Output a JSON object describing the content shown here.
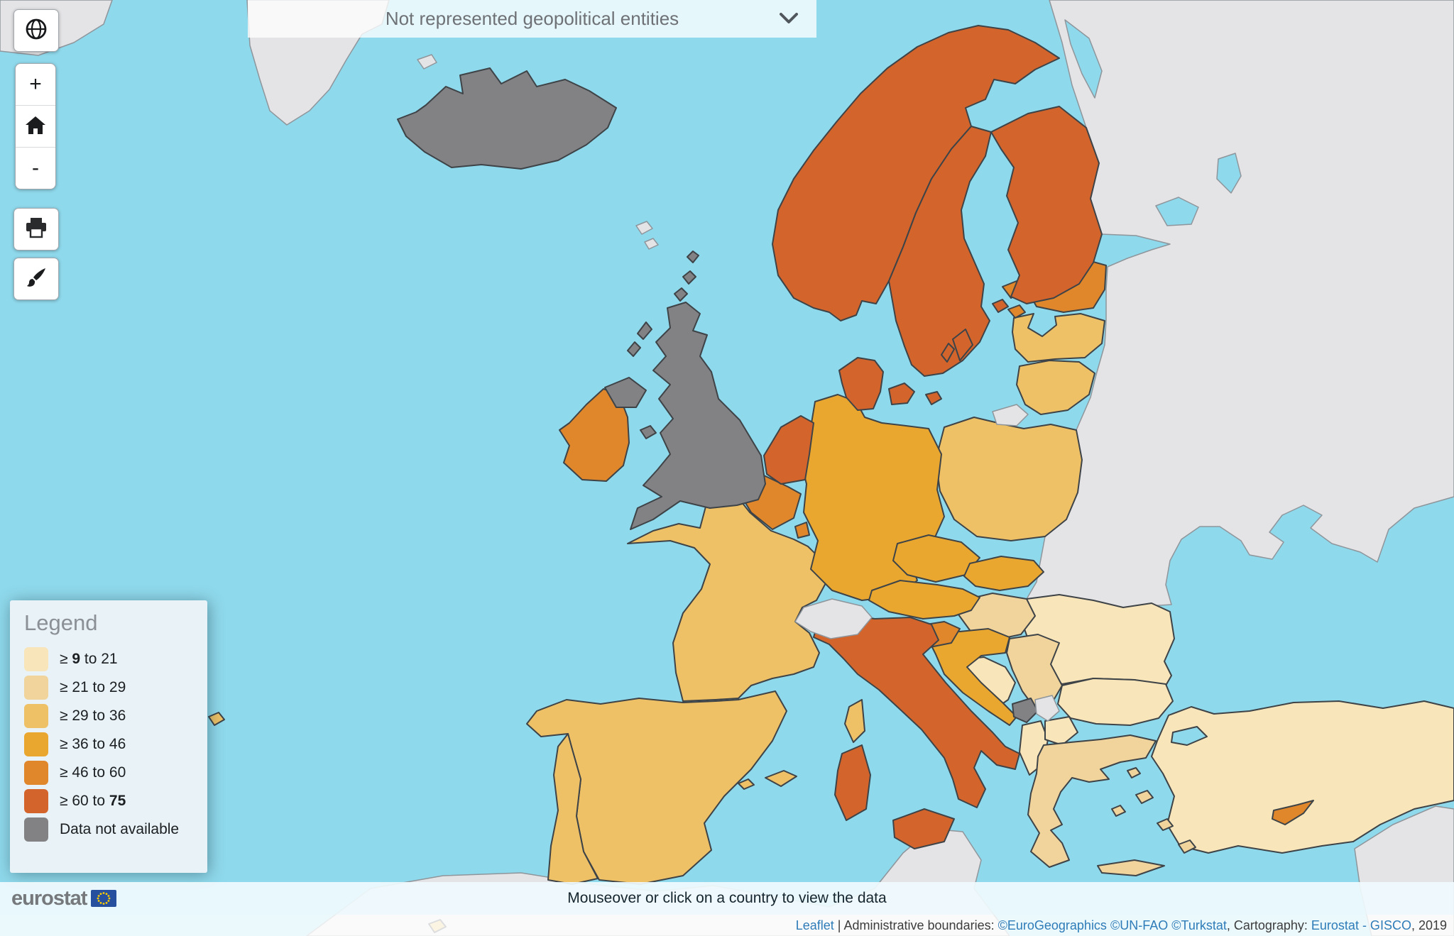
{
  "title_bar": {
    "label": "Not represented geopolitical entities"
  },
  "controls": {
    "zoom_in_label": "+",
    "zoom_out_label": "-"
  },
  "legend": {
    "title": "Legend",
    "items": [
      {
        "color": "c1",
        "segments": [
          {
            "text": "≥ ",
            "bold": false
          },
          {
            "text": "9",
            "bold": true
          },
          {
            "text": " to 21",
            "bold": false
          }
        ]
      },
      {
        "color": "c2",
        "segments": [
          {
            "text": "≥ 21 to 29",
            "bold": false
          }
        ]
      },
      {
        "color": "c3",
        "segments": [
          {
            "text": "≥ 29 to 36",
            "bold": false
          }
        ]
      },
      {
        "color": "c4",
        "segments": [
          {
            "text": "≥ 36 to 46",
            "bold": false
          }
        ]
      },
      {
        "color": "c5",
        "segments": [
          {
            "text": "≥ 46 to 60",
            "bold": false
          }
        ]
      },
      {
        "color": "c6",
        "segments": [
          {
            "text": "≥ 60 to ",
            "bold": false
          },
          {
            "text": "75",
            "bold": true
          }
        ]
      },
      {
        "color": "nodata",
        "segments": [
          {
            "text": "Data not available",
            "bold": false
          }
        ]
      }
    ]
  },
  "palette": {
    "sea": {
      "fill": "#8FD9EC"
    },
    "c1": {
      "fill": "#F8E5BA",
      "stroke": "#3E4347",
      "stroke_width": 2
    },
    "c2": {
      "fill": "#F1D49C",
      "stroke": "#3E4347",
      "stroke_width": 2
    },
    "c3": {
      "fill": "#EFC166",
      "stroke": "#3E4347",
      "stroke_width": 2
    },
    "c4": {
      "fill": "#EAA72F",
      "stroke": "#3E4347",
      "stroke_width": 2
    },
    "c5": {
      "fill": "#E0872B",
      "stroke": "#3E4347",
      "stroke_width": 2
    },
    "c6": {
      "fill": "#D3652C",
      "stroke": "#3E4347",
      "stroke_width": 2
    },
    "nodata": {
      "fill": "#828284",
      "stroke": "#3E4347",
      "stroke_width": 2
    },
    "notrep": {
      "fill": "#E4E4E6",
      "stroke": "#8E959B",
      "stroke_width": 1.5
    },
    "lake": {
      "fill": "#8FD9EC",
      "stroke": "#8E959B",
      "stroke_width": 1.5
    },
    "strait": {
      "fill": "#8FD9EC",
      "stroke": "#3E4347",
      "stroke_width": 2
    }
  },
  "countries": [
    {
      "id": "iceland",
      "name": "Iceland",
      "category": "nodata"
    },
    {
      "id": "uk",
      "name": "United Kingdom",
      "category": "nodata"
    },
    {
      "id": "montenegro",
      "name": "Montenegro",
      "category": "nodata"
    },
    {
      "id": "norway",
      "name": "Norway",
      "category": "c6"
    },
    {
      "id": "sweden",
      "name": "Sweden",
      "category": "c6"
    },
    {
      "id": "finland",
      "name": "Finland",
      "category": "c6"
    },
    {
      "id": "denmark",
      "name": "Denmark",
      "category": "c6"
    },
    {
      "id": "netherlands",
      "name": "Netherlands",
      "category": "c6"
    },
    {
      "id": "italy",
      "name": "Italy",
      "category": "c6"
    },
    {
      "id": "ireland",
      "name": "Ireland",
      "category": "c5"
    },
    {
      "id": "belgium",
      "name": "Belgium",
      "category": "c5"
    },
    {
      "id": "luxembourg",
      "name": "Luxembourg",
      "category": "c5"
    },
    {
      "id": "estonia",
      "name": "Estonia",
      "category": "c5"
    },
    {
      "id": "slovenia",
      "name": "Slovenia",
      "category": "c5"
    },
    {
      "id": "cyprus",
      "name": "Cyprus",
      "category": "c5"
    },
    {
      "id": "germany",
      "name": "Germany",
      "category": "c4"
    },
    {
      "id": "czechia",
      "name": "Czechia",
      "category": "c4"
    },
    {
      "id": "austria",
      "name": "Austria",
      "category": "c4"
    },
    {
      "id": "slovakia",
      "name": "Slovakia",
      "category": "c4"
    },
    {
      "id": "croatia",
      "name": "Croatia",
      "category": "c4"
    },
    {
      "id": "france",
      "name": "France",
      "category": "c3"
    },
    {
      "id": "spain",
      "name": "Spain",
      "category": "c3"
    },
    {
      "id": "portugal",
      "name": "Portugal",
      "category": "c3"
    },
    {
      "id": "poland",
      "name": "Poland",
      "category": "c3"
    },
    {
      "id": "latvia",
      "name": "Latvia",
      "category": "c3"
    },
    {
      "id": "lithuania",
      "name": "Lithuania",
      "category": "c3"
    },
    {
      "id": "hungary",
      "name": "Hungary",
      "category": "c2"
    },
    {
      "id": "serbia",
      "name": "Serbia",
      "category": "c2"
    },
    {
      "id": "greece",
      "name": "Greece",
      "category": "c2"
    },
    {
      "id": "romania",
      "name": "Romania",
      "category": "c1"
    },
    {
      "id": "bulgaria",
      "name": "Bulgaria",
      "category": "c1"
    },
    {
      "id": "bosnia",
      "name": "Bosnia and Herzegovina",
      "category": "c1"
    },
    {
      "id": "albania",
      "name": "Albania",
      "category": "c1"
    },
    {
      "id": "north-macedonia",
      "name": "North Macedonia",
      "category": "c1"
    },
    {
      "id": "turkey",
      "name": "Turkey",
      "category": "c1"
    },
    {
      "id": "switzerland",
      "name": "Switzerland",
      "category": "notrep"
    },
    {
      "id": "kosovo",
      "name": "Kosovo",
      "category": "notrep"
    },
    {
      "id": "kaliningrad",
      "name": "Kaliningrad",
      "category": "notrep"
    },
    {
      "id": "eastern-landmass",
      "name": "Eastern non-EU landmass",
      "category": "notrep"
    },
    {
      "id": "middle-east",
      "name": "Middle East",
      "category": "notrep"
    },
    {
      "id": "north-africa",
      "name": "North Africa",
      "category": "notrep"
    },
    {
      "id": "greenland",
      "name": "Greenland",
      "category": "notrep"
    },
    {
      "id": "jan-mayen",
      "name": "Jan Mayen",
      "category": "notrep"
    },
    {
      "id": "faroe",
      "name": "Faroe Islands",
      "category": "notrep"
    },
    {
      "id": "white-sea",
      "name": "White Sea",
      "category": "lake"
    },
    {
      "id": "ladoga",
      "name": "Lake Ladoga",
      "category": "lake"
    },
    {
      "id": "onega",
      "name": "Lake Onega",
      "category": "lake"
    },
    {
      "id": "marmara",
      "name": "Sea of Marmara",
      "category": "strait"
    }
  ],
  "footer": {
    "logo": "eurostat",
    "hint": "Mouseover or click on a country to view the data"
  },
  "attribution": {
    "segments": [
      {
        "text": "Leaflet",
        "link": true
      },
      {
        "text": " | Administrative boundaries: ",
        "link": false
      },
      {
        "text": "©EuroGeographics",
        "link": true
      },
      {
        "text": " ",
        "link": false
      },
      {
        "text": "©UN-FAO",
        "link": true
      },
      {
        "text": " ",
        "link": false
      },
      {
        "text": "©Turkstat",
        "link": true
      },
      {
        "text": ", Cartography: ",
        "link": false
      },
      {
        "text": "Eurostat - GISCO",
        "link": true
      },
      {
        "text": ", 2019",
        "link": false
      }
    ]
  }
}
